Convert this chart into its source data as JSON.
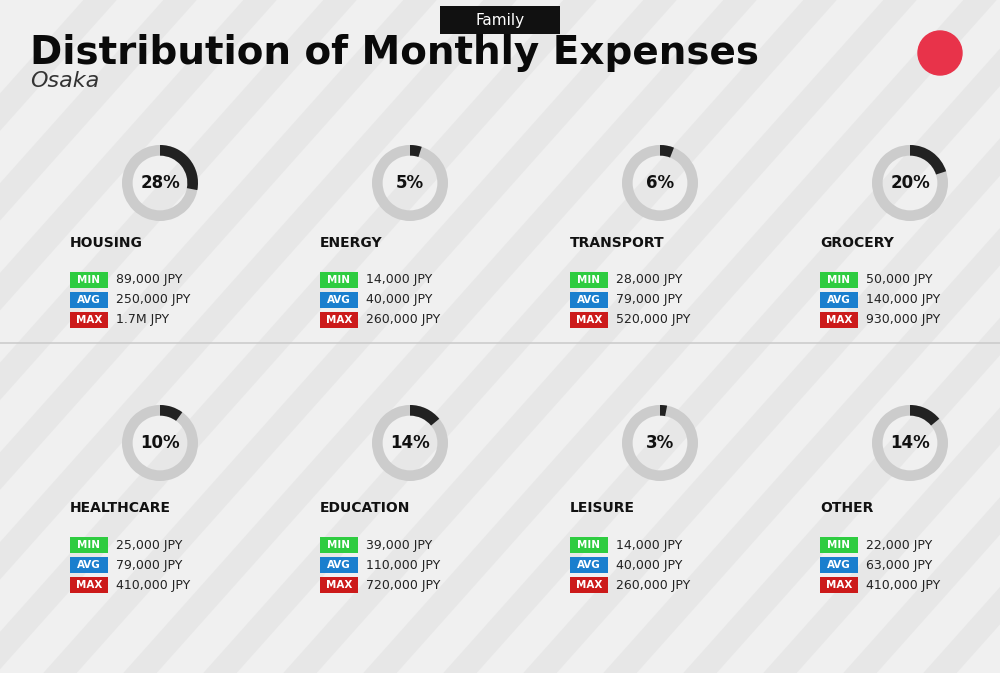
{
  "title": "Distribution of Monthly Expenses",
  "subtitle": "Osaka",
  "tag": "Family",
  "bg_color": "#f0f0f0",
  "red_dot_color": "#e8334a",
  "categories": [
    {
      "name": "HOUSING",
      "pct": 28,
      "min": "89,000 JPY",
      "avg": "250,000 JPY",
      "max": "1.7M JPY",
      "col": 0,
      "row": 0
    },
    {
      "name": "ENERGY",
      "pct": 5,
      "min": "14,000 JPY",
      "avg": "40,000 JPY",
      "max": "260,000 JPY",
      "col": 1,
      "row": 0
    },
    {
      "name": "TRANSPORT",
      "pct": 6,
      "min": "28,000 JPY",
      "avg": "79,000 JPY",
      "max": "520,000 JPY",
      "col": 2,
      "row": 0
    },
    {
      "name": "GROCERY",
      "pct": 20,
      "min": "50,000 JPY",
      "avg": "140,000 JPY",
      "max": "930,000 JPY",
      "col": 3,
      "row": 0
    },
    {
      "name": "HEALTHCARE",
      "pct": 10,
      "min": "25,000 JPY",
      "avg": "79,000 JPY",
      "max": "410,000 JPY",
      "col": 0,
      "row": 1
    },
    {
      "name": "EDUCATION",
      "pct": 14,
      "min": "39,000 JPY",
      "avg": "110,000 JPY",
      "max": "720,000 JPY",
      "col": 1,
      "row": 1
    },
    {
      "name": "LEISURE",
      "pct": 3,
      "min": "14,000 JPY",
      "avg": "40,000 JPY",
      "max": "260,000 JPY",
      "col": 2,
      "row": 1
    },
    {
      "name": "OTHER",
      "pct": 14,
      "min": "22,000 JPY",
      "avg": "63,000 JPY",
      "max": "410,000 JPY",
      "col": 3,
      "row": 1
    }
  ],
  "min_color": "#2ecc40",
  "avg_color": "#1a7fce",
  "max_color": "#cc1a1a",
  "label_color": "#ffffff",
  "donut_dark": "#222222",
  "donut_light": "#cccccc",
  "category_color": "#111111",
  "value_color": "#222222"
}
